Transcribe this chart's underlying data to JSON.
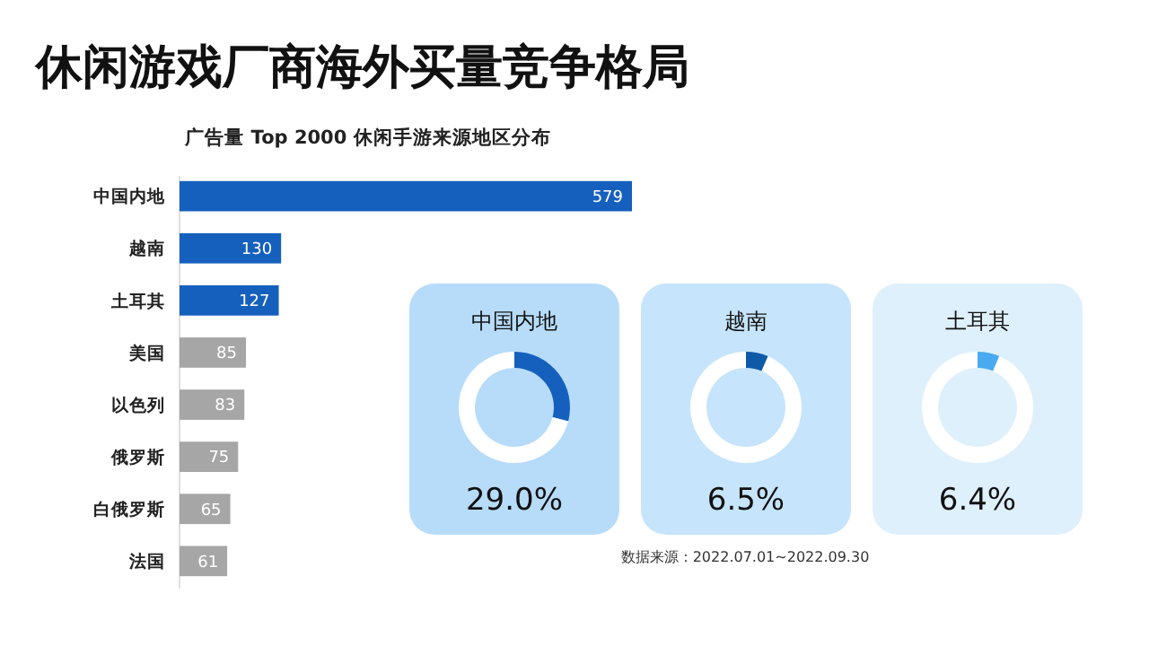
{
  "chart_data": [
    {
      "type": "bar",
      "orientation": "horizontal",
      "title": "休闲游戏厂商海外买量竞争格局",
      "subtitle": "广告量 Top 2000 休闲手游来源地区分布",
      "categories": [
        "中国内地",
        "越南",
        "土耳其",
        "美国",
        "以色列",
        "俄罗斯",
        "白俄罗斯",
        "法国"
      ],
      "values": [
        579,
        130,
        127,
        85,
        83,
        75,
        65,
        61
      ],
      "colors": [
        "#1560bd",
        "#1560bd",
        "#1560bd",
        "#a6a6a6",
        "#a6a6a6",
        "#a6a6a6",
        "#a6a6a6",
        "#a6a6a6"
      ],
      "data_labels": true,
      "annotations": [
        "数据来源：2022.07.01~2022.09.30"
      ]
    },
    {
      "type": "donut",
      "title": "中国内地",
      "categories": [
        null,
        null
      ],
      "values": [
        29.0,
        71.0
      ],
      "colors": [
        "#1560bd",
        "#ffffff"
      ],
      "subtitle": "29.0%"
    },
    {
      "type": "donut",
      "title": "越南",
      "categories": [
        null,
        null
      ],
      "values": [
        6.5,
        93.5
      ],
      "colors": [
        "#0f5aa8",
        "#ffffff"
      ],
      "subtitle": "6.5%"
    },
    {
      "type": "donut",
      "title": "土耳其",
      "categories": [
        null,
        null
      ],
      "values": [
        6.4,
        93.6
      ],
      "colors": [
        "#4aaaf0",
        "#ffffff"
      ],
      "subtitle": "6.4%"
    }
  ]
}
